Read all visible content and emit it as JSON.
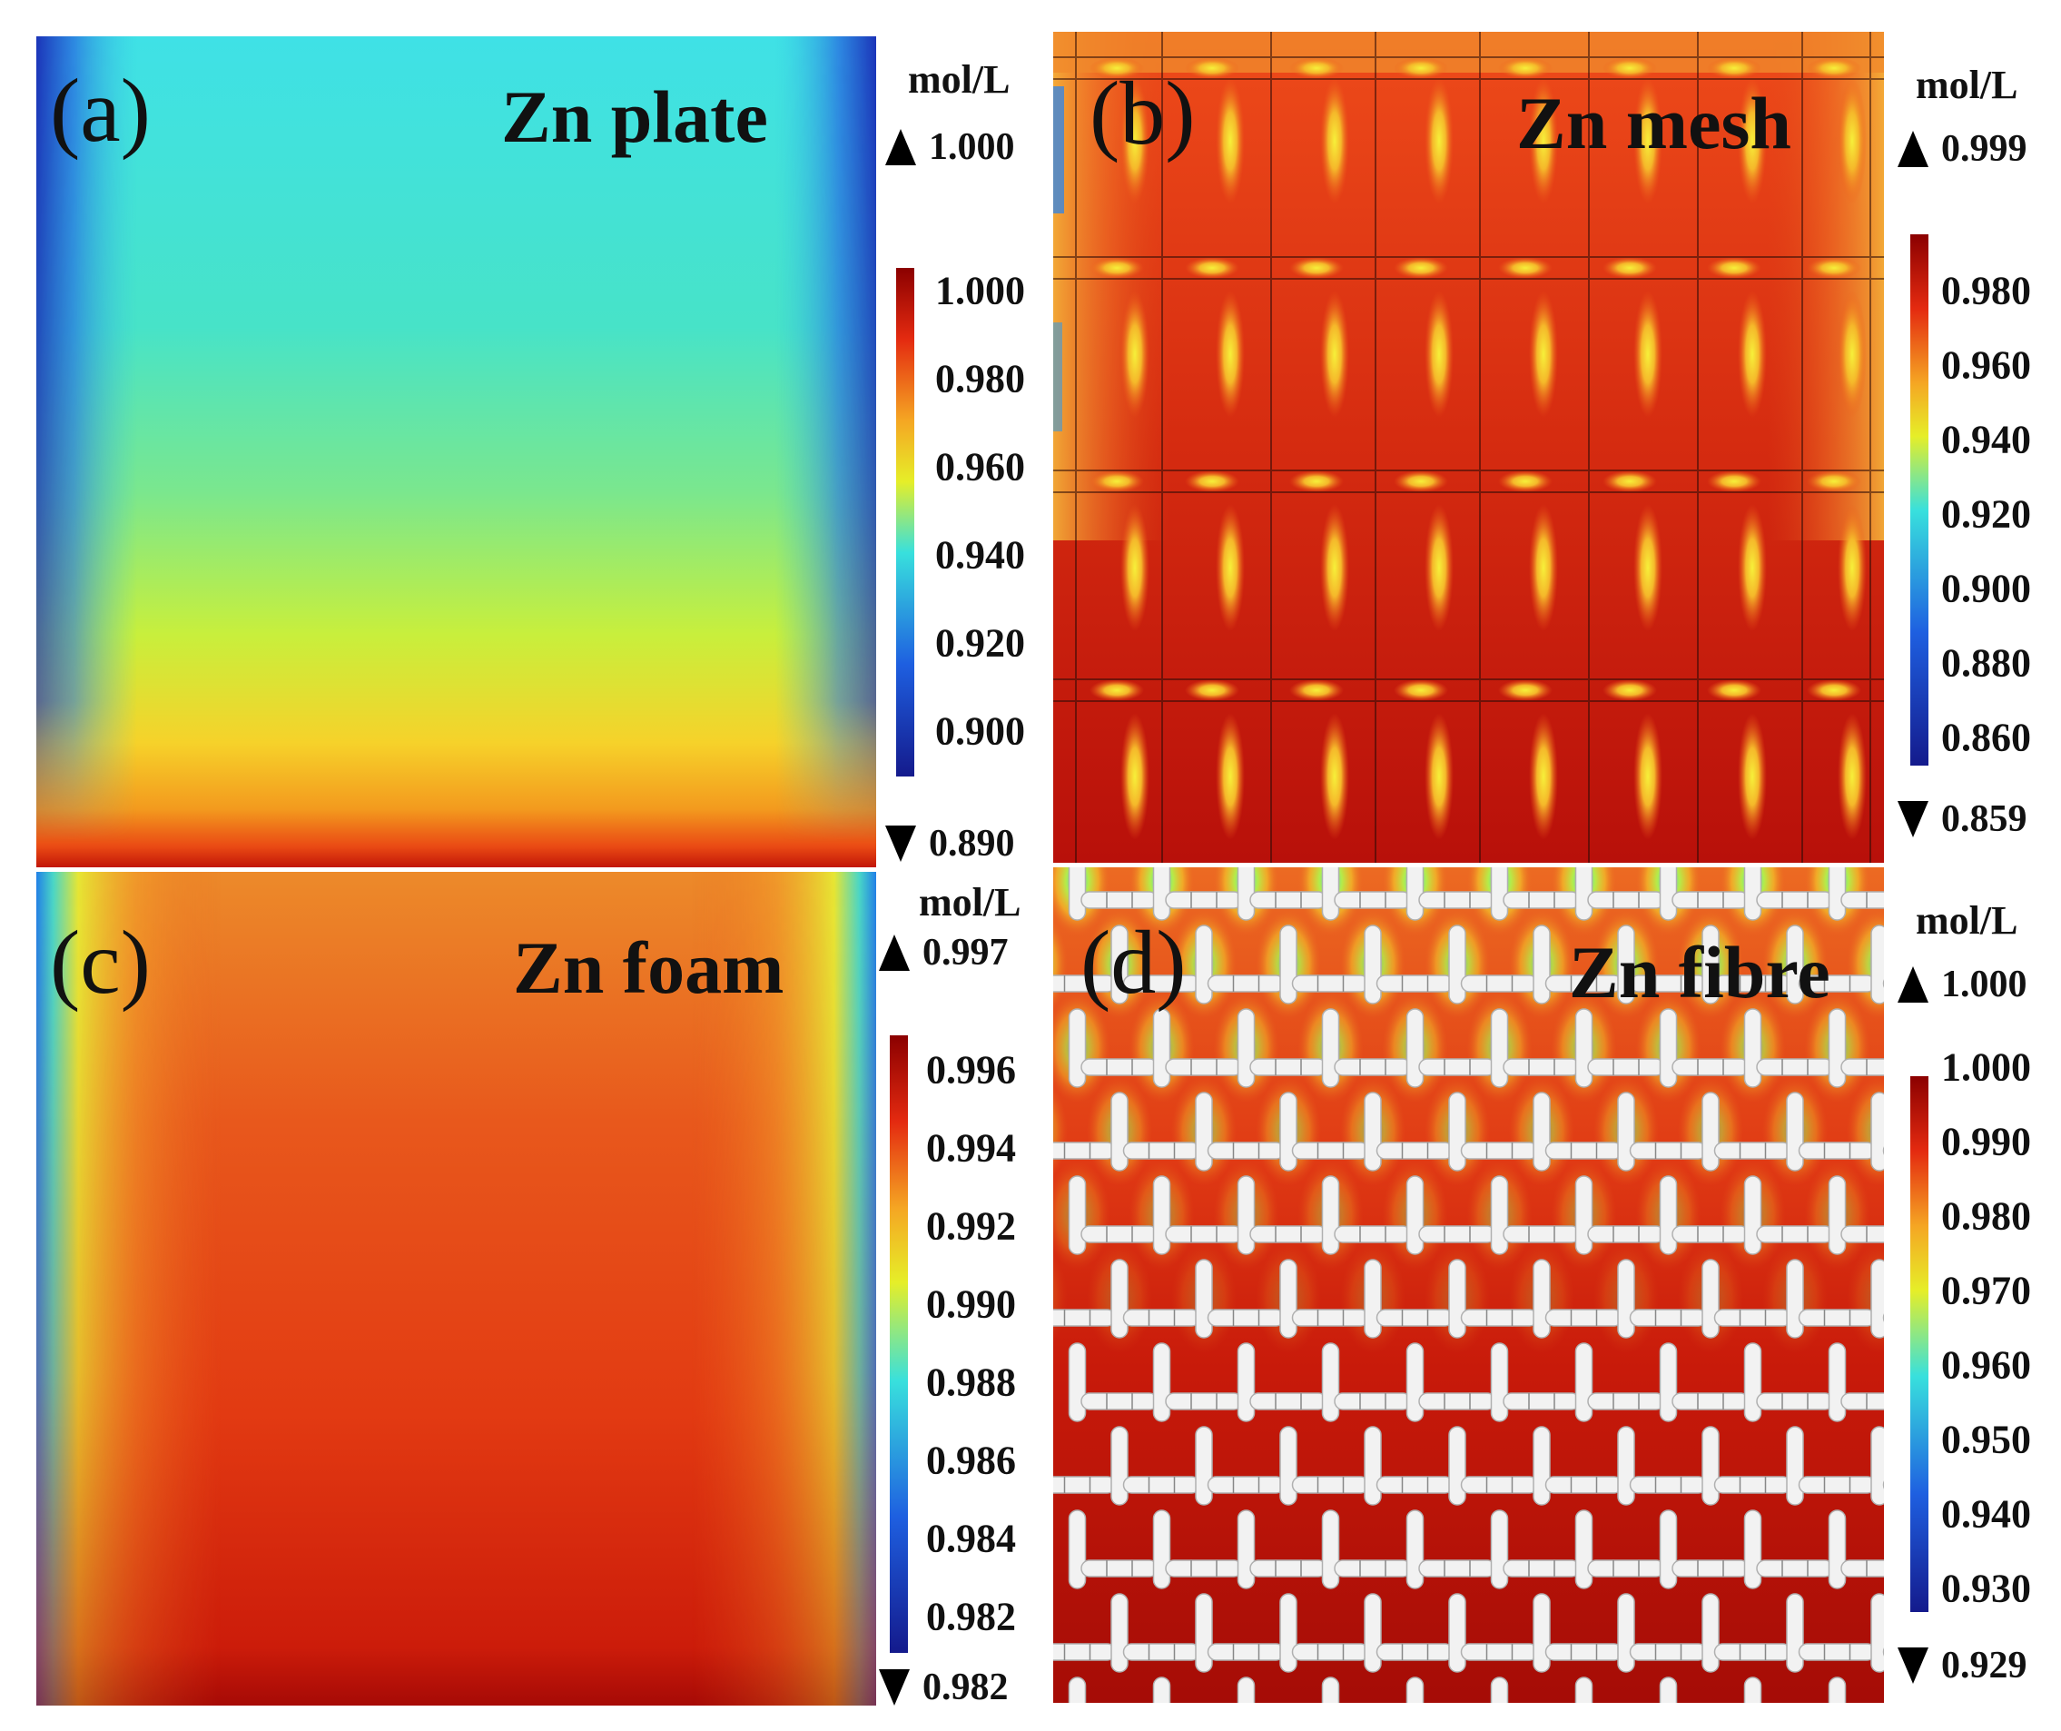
{
  "panels": {
    "a": {
      "letter": "(a)",
      "title": "Zn plate",
      "unit": "mol/L",
      "max": "1.000",
      "min": "0.890",
      "ticks": [
        "1.000",
        "0.980",
        "0.960",
        "0.940",
        "0.920",
        "0.900"
      ]
    },
    "b": {
      "letter": "(b)",
      "title": "Zn mesh",
      "unit": "mol/L",
      "max": "0.999",
      "min": "0.859",
      "ticks": [
        "0.980",
        "0.960",
        "0.940",
        "0.920",
        "0.900",
        "0.880",
        "0.860"
      ]
    },
    "c": {
      "letter": "(c)",
      "title": "Zn foam",
      "unit": "mol/L",
      "max": "0.997",
      "min": "0.982",
      "ticks": [
        "0.996",
        "0.994",
        "0.992",
        "0.990",
        "0.988",
        "0.986",
        "0.984",
        "0.982"
      ]
    },
    "d": {
      "letter": "(d)",
      "title": "Zn fibre",
      "unit": "mol/L",
      "max": "1.000",
      "min": "0.929",
      "ticks": [
        "1.000",
        "0.990",
        "0.980",
        "0.970",
        "0.960",
        "0.950",
        "0.940",
        "0.930"
      ]
    }
  },
  "colors": {
    "jet_top": "#8b0000",
    "jet_red": "#e42a10",
    "jet_orange": "#f5a623",
    "jet_yellow": "#e6ee28",
    "jet_cyan": "#38e0dd",
    "jet_blue": "#1e5fe0",
    "jet_navy": "#141a8c"
  }
}
